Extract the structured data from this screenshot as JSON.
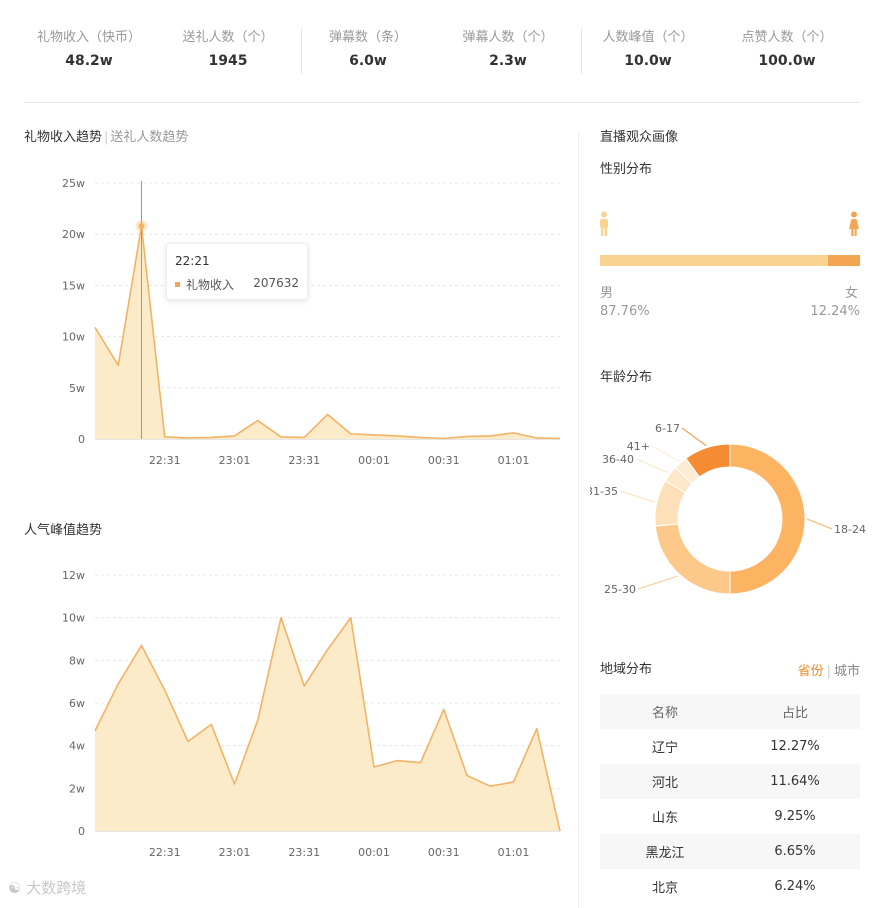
{
  "stats": [
    {
      "label": "礼物收入（快币）",
      "value": "48.2w"
    },
    {
      "label": "送礼人数（个）",
      "value": "1945"
    },
    {
      "label": "弹幕数（条）",
      "value": "6.0w"
    },
    {
      "label": "弹幕人数（个）",
      "value": "2.3w"
    },
    {
      "label": "人数峰值（个）",
      "value": "10.0w"
    },
    {
      "label": "点赞人数（个）",
      "value": "100.0w"
    }
  ],
  "gift_chart": {
    "tab_active": "礼物收入趋势",
    "tab_inactive": "送礼人数趋势",
    "tooltip": {
      "time": "22:21",
      "series": "礼物收入",
      "value": "207632"
    }
  },
  "popularity_chart": {
    "title": "人气峰值趋势"
  },
  "chart_data": [
    {
      "type": "area",
      "title": "礼物收入趋势",
      "ylim": [
        0,
        25
      ],
      "yticks": [
        "0",
        "5w",
        "10w",
        "15w",
        "20w",
        "25w"
      ],
      "ytick_values": [
        0,
        5,
        10,
        15,
        20,
        25
      ],
      "xticks": [
        "22:31",
        "23:01",
        "23:31",
        "00:01",
        "00:31",
        "01:01"
      ],
      "xtick_positions": [
        3,
        6,
        9,
        12,
        15,
        18
      ],
      "x": [
        0,
        1,
        2,
        3,
        4,
        5,
        6,
        7,
        8,
        9,
        10,
        11,
        12,
        13,
        14,
        15,
        16,
        17,
        18,
        19,
        20
      ],
      "values": [
        10.9,
        7.2,
        20.8,
        0.2,
        0.1,
        0.15,
        0.3,
        1.8,
        0.2,
        0.15,
        2.4,
        0.5,
        0.4,
        0.3,
        0.15,
        0.05,
        0.25,
        0.3,
        0.6,
        0.1,
        0.05
      ],
      "highlight_index": 2,
      "color": "#f2b366",
      "fill": "#fcebc9"
    },
    {
      "type": "area",
      "title": "人气峰值趋势",
      "ylim": [
        0,
        12
      ],
      "yticks": [
        "0",
        "2w",
        "4w",
        "6w",
        "8w",
        "10w",
        "12w"
      ],
      "ytick_values": [
        0,
        2,
        4,
        6,
        8,
        10,
        12
      ],
      "xticks": [
        "22:31",
        "23:01",
        "23:31",
        "00:01",
        "00:31",
        "01:01"
      ],
      "xtick_positions": [
        3,
        6,
        9,
        12,
        15,
        18
      ],
      "x": [
        0,
        1,
        2,
        3,
        4,
        5,
        6,
        7,
        8,
        9,
        10,
        11,
        12,
        13,
        14,
        15,
        16,
        17,
        18,
        19,
        20
      ],
      "values": [
        4.7,
        6.9,
        8.7,
        6.6,
        4.2,
        5.0,
        2.2,
        5.2,
        10.0,
        6.8,
        8.5,
        10.0,
        3.0,
        3.3,
        3.2,
        5.7,
        2.6,
        2.1,
        2.3,
        4.8,
        0.0
      ],
      "color": "#f2b366",
      "fill": "#fcebc9"
    },
    {
      "type": "pie",
      "title": "年龄分布",
      "categories": [
        "18-24",
        "25-30",
        "31-35",
        "36-40",
        "41+",
        "6-17"
      ],
      "values": [
        50,
        23.5,
        10,
        3.5,
        3,
        10
      ],
      "colors": [
        "#fdb462",
        "#fdc98a",
        "#fde0b8",
        "#fce7c8",
        "#fdebd3",
        "#f58b32"
      ]
    }
  ],
  "audience": {
    "title": "直播观众画像",
    "gender_title": "性别分布",
    "male_label": "男",
    "male_pct": "87.76%",
    "female_label": "女",
    "female_pct": "12.24%",
    "male_fraction": 0.8776,
    "age_title": "年龄分布",
    "male_icon": "male-person-icon",
    "female_icon": "female-person-icon"
  },
  "region": {
    "title": "地域分布",
    "tab_province": "省份",
    "tab_city": "城市",
    "columns": [
      "名称",
      "占比"
    ],
    "rows": [
      [
        "辽宁",
        "12.27%"
      ],
      [
        "河北",
        "11.64%"
      ],
      [
        "山东",
        "9.25%"
      ],
      [
        "黑龙江",
        "6.65%"
      ],
      [
        "北京",
        "6.24%"
      ]
    ]
  },
  "watermark": "大数跨境"
}
